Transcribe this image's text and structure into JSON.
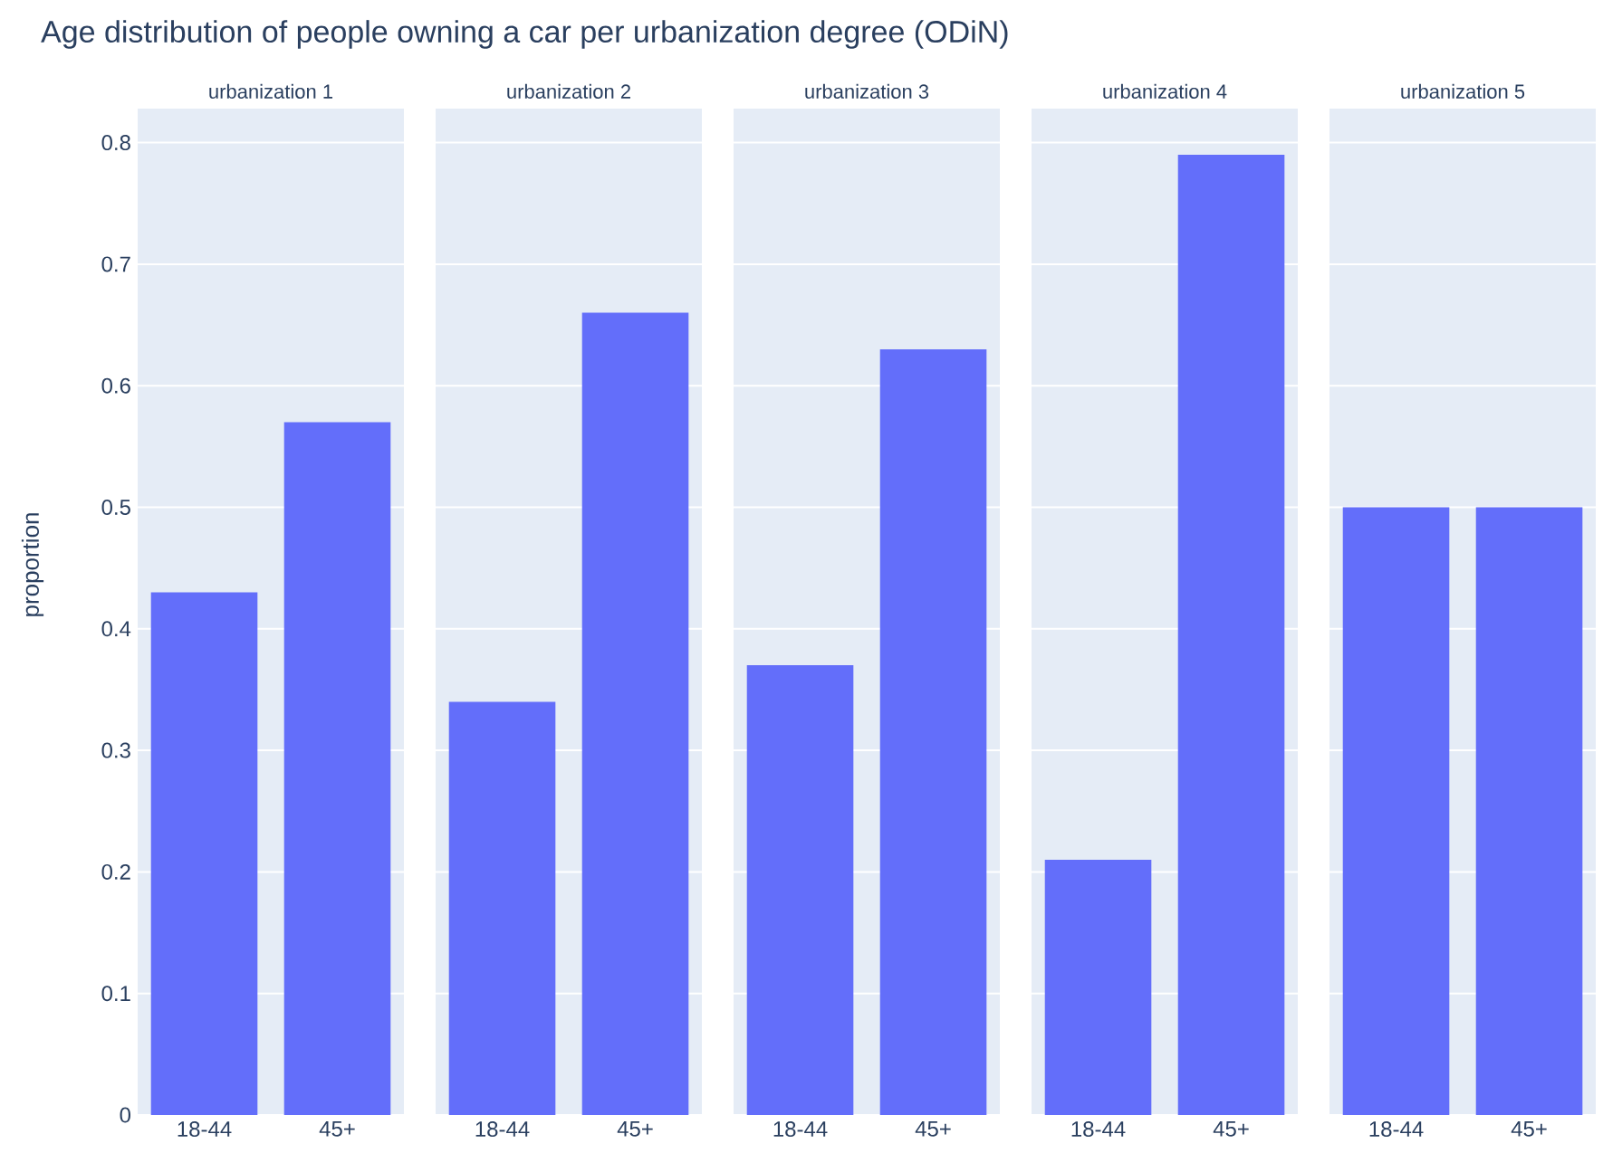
{
  "chart_data": [
    {
      "type": "bar",
      "title": "Age distribution of people owning a car per urbanization degree (ODiN)",
      "subtitle": "urbanization  1",
      "ylabel": "proportion",
      "categories": [
        "18-44",
        "45+"
      ],
      "values": [
        0.43,
        0.57
      ],
      "color": "#636efa",
      "ylim": [
        0,
        0.828
      ],
      "yticks": [
        0,
        0.1,
        0.2,
        0.3,
        0.4,
        0.5,
        0.6,
        0.7,
        0.8
      ],
      "grid": "y"
    },
    {
      "type": "bar",
      "subtitle": "urbanization  2",
      "categories": [
        "18-44",
        "45+"
      ],
      "values": [
        0.34,
        0.66
      ],
      "color": "#636efa",
      "ylim": [
        0,
        0.828
      ],
      "grid": "y",
      "tick_labels": "x"
    },
    {
      "type": "bar",
      "subtitle": "urbanization  3",
      "categories": [
        "18-44",
        "45+"
      ],
      "values": [
        0.37,
        0.63
      ],
      "color": "#636efa",
      "ylim": [
        0,
        0.828
      ],
      "grid": "y",
      "tick_labels": "x"
    },
    {
      "type": "bar",
      "subtitle": "urbanization  4",
      "categories": [
        "18-44",
        "45+"
      ],
      "values": [
        0.21,
        0.79
      ],
      "color": "#636efa",
      "ylim": [
        0,
        0.828
      ],
      "grid": "y",
      "tick_labels": "x"
    },
    {
      "type": "bar",
      "subtitle": "urbanization  5",
      "categories": [
        "18-44",
        "45+"
      ],
      "values": [
        0.5,
        0.5
      ],
      "color": "#636efa",
      "ylim": [
        0,
        0.828
      ],
      "grid": "y",
      "tick_labels": "x"
    }
  ]
}
